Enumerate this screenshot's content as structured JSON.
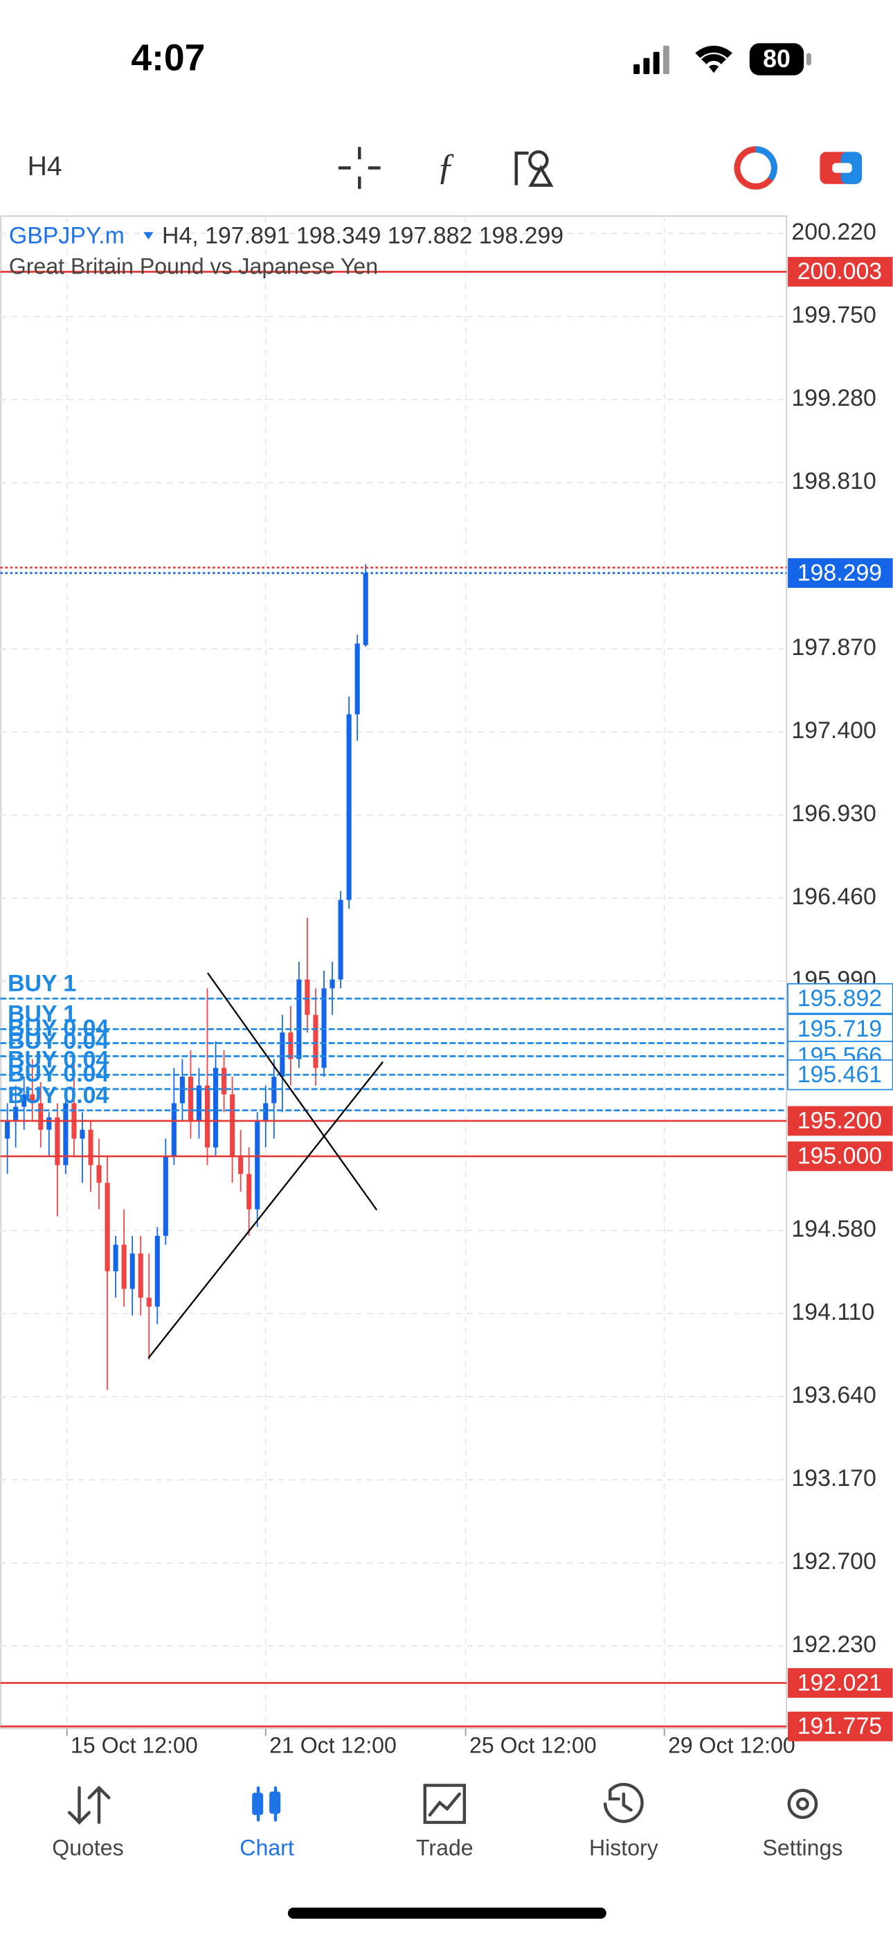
{
  "status_bar": {
    "time": "4:07",
    "battery": "80"
  },
  "toolbar": {
    "timeframe": "H4"
  },
  "chart_data": {
    "type": "candlestick",
    "symbol": "GBPJPY.m",
    "info": "H4, 197.891 198.349 197.882 198.299",
    "description": "Great Britain Pound vs Japanese Yen",
    "open": [
      195.1,
      195.2,
      195.28,
      195.35,
      195.3,
      195.15,
      195.22,
      194.95,
      195.3,
      195.1,
      195.15,
      194.95,
      194.85,
      194.35,
      194.5,
      194.25,
      194.45,
      194.2,
      194.15,
      194.55,
      195.0,
      195.3,
      195.45,
      195.2,
      195.4,
      195.05,
      195.5,
      195.35,
      195.0,
      194.9,
      194.7,
      195.2,
      195.3,
      195.45,
      195.7,
      195.55,
      196.0,
      195.8,
      195.5,
      195.95,
      196.0,
      196.45,
      197.5,
      197.891
    ],
    "high": [
      195.3,
      195.4,
      195.45,
      195.55,
      195.42,
      195.25,
      195.3,
      195.35,
      195.55,
      195.25,
      195.2,
      195.1,
      195.0,
      194.55,
      194.7,
      194.55,
      194.55,
      194.45,
      194.6,
      195.1,
      195.5,
      195.55,
      195.6,
      195.5,
      195.95,
      195.65,
      195.6,
      195.45,
      195.15,
      195.05,
      195.25,
      195.4,
      195.55,
      195.8,
      195.85,
      196.1,
      196.35,
      195.95,
      196.05,
      196.1,
      196.5,
      197.6,
      197.95,
      198.349
    ],
    "low": [
      194.9,
      195.05,
      195.15,
      195.2,
      195.05,
      195.0,
      194.66,
      194.9,
      195.0,
      194.85,
      194.8,
      194.7,
      193.68,
      194.2,
      194.15,
      194.1,
      194.1,
      193.85,
      194.05,
      194.5,
      194.95,
      195.2,
      195.1,
      195.1,
      194.95,
      195.0,
      195.25,
      194.85,
      194.8,
      194.55,
      194.6,
      195.05,
      195.1,
      195.25,
      195.4,
      195.5,
      195.7,
      195.4,
      195.45,
      195.8,
      195.95,
      196.4,
      197.35,
      197.882
    ],
    "close": [
      195.2,
      195.28,
      195.35,
      195.3,
      195.15,
      195.22,
      194.95,
      195.3,
      195.1,
      195.15,
      194.95,
      194.85,
      194.35,
      194.5,
      194.25,
      194.45,
      194.2,
      194.15,
      194.55,
      195.0,
      195.3,
      195.45,
      195.2,
      195.4,
      195.05,
      195.5,
      195.35,
      195.0,
      194.9,
      194.7,
      195.2,
      195.3,
      195.45,
      195.7,
      195.55,
      196.0,
      195.8,
      195.5,
      195.95,
      196.0,
      196.45,
      197.5,
      197.9,
      198.299
    ],
    "up_color": "#1565e8",
    "down_color": "#ef4444",
    "ylim": [
      191.763,
      200.318
    ],
    "yticks": [
      {
        "value": 200.22,
        "label": "200.220"
      },
      {
        "value": 199.75,
        "label": "199.750"
      },
      {
        "value": 199.28,
        "label": "199.280"
      },
      {
        "value": 198.81,
        "label": "198.810"
      },
      {
        "value": 197.87,
        "label": "197.870"
      },
      {
        "value": 197.4,
        "label": "197.400"
      },
      {
        "value": 196.93,
        "label": "196.930"
      },
      {
        "value": 196.46,
        "label": "196.460"
      },
      {
        "value": 195.99,
        "label": "195.990"
      },
      {
        "value": 194.58,
        "label": "194.580"
      },
      {
        "value": 194.11,
        "label": "194.110"
      },
      {
        "value": 193.64,
        "label": "193.640"
      },
      {
        "value": 193.17,
        "label": "193.170"
      },
      {
        "value": 192.7,
        "label": "192.700"
      },
      {
        "value": 192.23,
        "label": "192.230"
      }
    ],
    "xticks": [
      "15 Oct 12:00",
      "21 Oct 12:00",
      "25 Oct 12:00",
      "29 Oct 12:00"
    ],
    "grid": true,
    "levels": [
      {
        "value": 200.003,
        "label": "200.003",
        "color": "#e53935"
      },
      {
        "value": 195.2,
        "label": "195.200",
        "color": "#e53935"
      },
      {
        "value": 195.0,
        "label": "195.000",
        "color": "#e53935"
      },
      {
        "value": 192.021,
        "label": "192.021",
        "color": "#e53935"
      },
      {
        "value": 191.775,
        "label": "191.775",
        "color": "#e53935"
      }
    ],
    "bid": {
      "value": 198.299,
      "label": "198.299",
      "color": "#1565e8"
    },
    "ask": {
      "value": 198.33,
      "color": "#e53935"
    },
    "order_color": "#1e88e5",
    "orders": [
      {
        "value": 195.892,
        "label": "195.892",
        "text": "BUY 1"
      },
      {
        "value": 195.719,
        "label": "195.719",
        "text": "BUY 1"
      },
      {
        "value": 195.64,
        "text": "BUY 0.04"
      },
      {
        "value": 195.566,
        "label": "195.566",
        "text": "BUY 0.04"
      },
      {
        "value": 195.461,
        "label": "195.461",
        "text": "BUY 0.04"
      },
      {
        "value": 195.38,
        "text": "BUY 0.04"
      },
      {
        "value": 195.26,
        "text": "BUY 0.04"
      }
    ]
  },
  "tabs": [
    {
      "label": "Quotes"
    },
    {
      "label": "Chart",
      "active": true
    },
    {
      "label": "Trade"
    },
    {
      "label": "History"
    },
    {
      "label": "Settings"
    }
  ]
}
